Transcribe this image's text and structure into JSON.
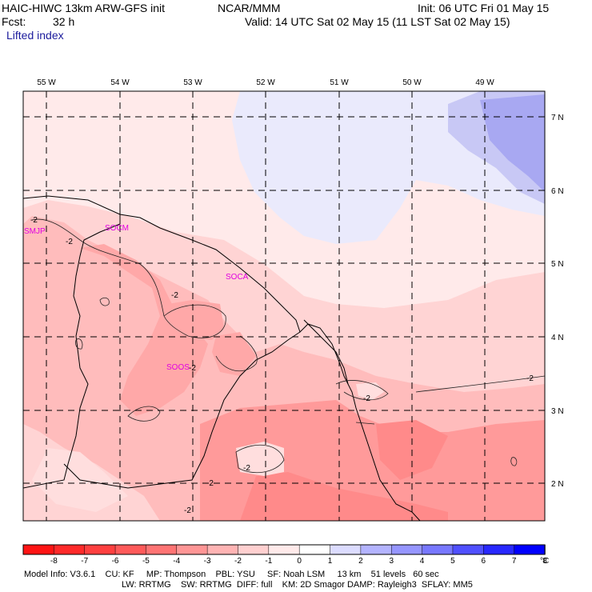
{
  "header": {
    "title": "HAIC-HIWC 13km ARW-GFS init",
    "org": "NCAR/MMM",
    "init": "Init: 06 UTC Fri 01 May 15",
    "fcst_label": "Fcst:",
    "fcst_value": "32 h",
    "valid": "Valid: 14 UTC Sat 02 May 15 (11 LST Sat 02 May 15)",
    "field_name": "Lifted index"
  },
  "map": {
    "lon_labels": [
      "55 W",
      "54 W",
      "53 W",
      "52 W",
      "51 W",
      "50 W",
      "49 W"
    ],
    "lat_labels": [
      "7 N",
      "6 N",
      "5 N",
      "4 N",
      "3 N",
      "2 N"
    ],
    "stations": [
      {
        "id": "SMJP",
        "color": "#e100e1"
      },
      {
        "id": "SOCM",
        "color": "#e100e1"
      },
      {
        "id": "SOCA",
        "color": "#e100e1"
      },
      {
        "id": "SOOS",
        "color": "#e100e1"
      }
    ],
    "contour_label": "-2",
    "colors": {
      "positive_light": "#e6e6fa",
      "positive_mid": "#c8c8f5",
      "positive_strong": "#a0a0f0",
      "neg_0_1": "#ffeaea",
      "neg_1_2": "#ffcfcf",
      "neg_2_3": "#ffa8a8",
      "neg_3_4": "#ff8a8a",
      "coast": "#000000"
    }
  },
  "colorbar": {
    "ticks": [
      "-8",
      "-7",
      "-6",
      "-5",
      "-4",
      "-3",
      "-2",
      "-1",
      "0",
      "1",
      "2",
      "3",
      "4",
      "5",
      "6",
      "7",
      "8"
    ],
    "unit": "°C",
    "colors": [
      "#ff1414",
      "#ff2a2a",
      "#ff4040",
      "#ff5a5a",
      "#ff7474",
      "#ff9696",
      "#ffb4b4",
      "#ffd0d0",
      "#ffeaea",
      "#ffffff",
      "#dcdcff",
      "#b4b4ff",
      "#9696ff",
      "#7878ff",
      "#5050ff",
      "#2828ff",
      "#0000ff"
    ]
  },
  "footer": {
    "line1": "Model Info: V3.6.1    CU: KF     MP: Thompson    PBL: YSU     SF: Noah LSM     13 km    51 levels   60 sec",
    "line2": "LW: RRTMG    SW: RRTMG  DIFF: full    KM: 2D Smagor DAMP: Rayleigh3  SFLAY: MM5"
  }
}
